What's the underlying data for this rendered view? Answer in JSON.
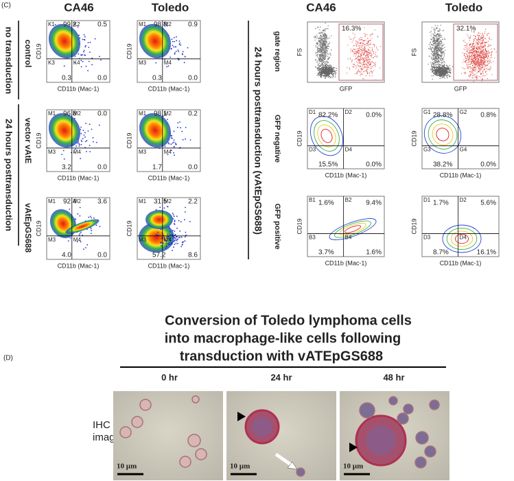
{
  "panel_c": {
    "label": "(C)",
    "column_headers": [
      "CA46",
      "Toledo",
      "CA46",
      "Toledo"
    ],
    "left": {
      "group_labels": [
        "no transduction",
        "24 hours posttransduction"
      ],
      "row_labels": [
        "control",
        "vector vAtE",
        "vAtEpGS688"
      ],
      "y_axis_label": "CD19",
      "x_axis_label": "CD11b (Mac-1)",
      "plots": [
        [
          {
            "quadrants": [
              "K1",
              "K2",
              "K3",
              "K4"
            ],
            "values": [
              "99.2",
              "0.5",
              "0.3",
              "0.0"
            ]
          },
          {
            "quadrants": [
              "M1",
              "M2",
              "M3",
              "M4"
            ],
            "values": [
              "98.8",
              "0.9",
              "0.3",
              "0.0"
            ]
          }
        ],
        [
          {
            "quadrants": [
              "M1",
              "M2",
              "M3",
              "M4"
            ],
            "values": [
              "96.8",
              "0.0",
              "3.2",
              "0.0"
            ]
          },
          {
            "quadrants": [
              "M1",
              "M2",
              "M3",
              "M4"
            ],
            "values": [
              "98.1",
              "0.2",
              "1.7",
              "0.0"
            ]
          }
        ],
        [
          {
            "quadrants": [
              "M1",
              "M2",
              "M3",
              "M4"
            ],
            "values": [
              "92.4",
              "3.6",
              "4.0",
              "0.0"
            ]
          },
          {
            "quadrants": [
              "M1",
              "M2",
              "M3",
              "M4"
            ],
            "values": [
              "31.5",
              "2.2",
              "57.2",
              "8.6"
            ]
          }
        ]
      ]
    },
    "right": {
      "group_label": "24 hours posttransduction (vAtEpGS688)",
      "row_labels": [
        "gate region",
        "GFP negative",
        "GFP positive"
      ],
      "gate": {
        "y_axis_label": "FS",
        "x_axis_label": "GFP",
        "values": [
          "16.3%",
          "32.1%"
        ]
      },
      "y_axis_label": "CD19",
      "x_axis_label": "CD11b (Mac-1)",
      "plots": [
        [
          {
            "quadrants": [
              "D1",
              "D2",
              "D3",
              "D4"
            ],
            "values": [
              "82.2%",
              "0.0%",
              "15.5%",
              "0.0%"
            ]
          },
          {
            "quadrants": [
              "G1",
              "G2",
              "G3",
              "G4"
            ],
            "values": [
              "28.8%",
              "0.8%",
              "38.2%",
              "0.0%"
            ]
          }
        ],
        [
          {
            "quadrants": [
              "B1",
              "B2",
              "B3",
              "B4"
            ],
            "values": [
              "1.6%",
              "9.4%",
              "3.7%",
              "1.6%"
            ]
          },
          {
            "quadrants": [
              "D1",
              "D2",
              "D3",
              "D4"
            ],
            "values": [
              "1.7%",
              "5.6%",
              "8.7%",
              "16.1%"
            ]
          }
        ]
      ]
    }
  },
  "panel_d": {
    "label": "(D)",
    "title_lines": [
      "Conversion of Toledo lymphoma cells",
      "into macrophage-like cells following",
      "transduction with vATEpGS688"
    ],
    "time_points": [
      "0 hr",
      "24 hr",
      "48 hr"
    ],
    "row_label_lines": [
      "IHC",
      "images"
    ],
    "scale_bar": "10 µm"
  }
}
